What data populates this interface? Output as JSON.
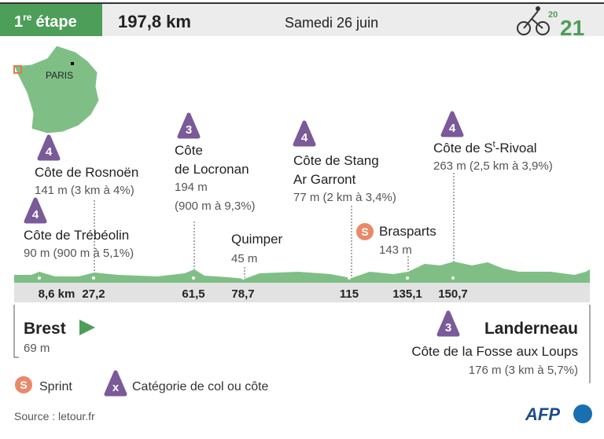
{
  "header": {
    "stage_number": "1",
    "stage_suffix": "re",
    "stage_word": "étape",
    "distance": "197,8 km",
    "date": "Samedi 26 juin",
    "logo_top": "20",
    "logo_bottom": "21"
  },
  "map": {
    "city": "PARIS"
  },
  "climbs": [
    {
      "category": "4",
      "name": "Côte de Rosnoën",
      "detail": "141 m (3 km à 4%)"
    },
    {
      "category": "4",
      "name": "Côte de Trébéolin",
      "detail": "90 m (900 m à 5,1%)"
    },
    {
      "category": "3",
      "name_lines": [
        "Côte",
        "de Locronan"
      ],
      "detail_lines": [
        "194 m",
        "(900 m à 9,3%)"
      ]
    },
    {
      "category": "4",
      "name_lines": [
        "Côte de Stang",
        "Ar Garront"
      ],
      "detail": "77 m (2 km à 3,4%)"
    },
    {
      "category": "4",
      "name_parts": [
        "Côte de S",
        "t",
        "-Rivoal"
      ],
      "detail": "263 m (2,5 km à 3,9%)"
    }
  ],
  "places": [
    {
      "name": "Quimper",
      "altitude": "45 m"
    },
    {
      "badge": "S",
      "name": "Brasparts",
      "altitude": "143 m"
    }
  ],
  "km_markers": [
    "8,6 km",
    "27,2",
    "61,5",
    "78,7",
    "115",
    "135,1",
    "150,7"
  ],
  "start": {
    "name": "Brest",
    "altitude": "69 m"
  },
  "finish": {
    "name": "Landerneau",
    "category": "3",
    "climb": "Côte de la Fosse aux Loups",
    "detail": "176 m (3 km à 5,7%)"
  },
  "legend": [
    {
      "badge": "S",
      "label": "Sprint"
    },
    {
      "badge": "x",
      "label": "Catégorie de col ou côte"
    }
  ],
  "footer": {
    "source": "Source : letour.fr",
    "agency": "AFP"
  }
}
